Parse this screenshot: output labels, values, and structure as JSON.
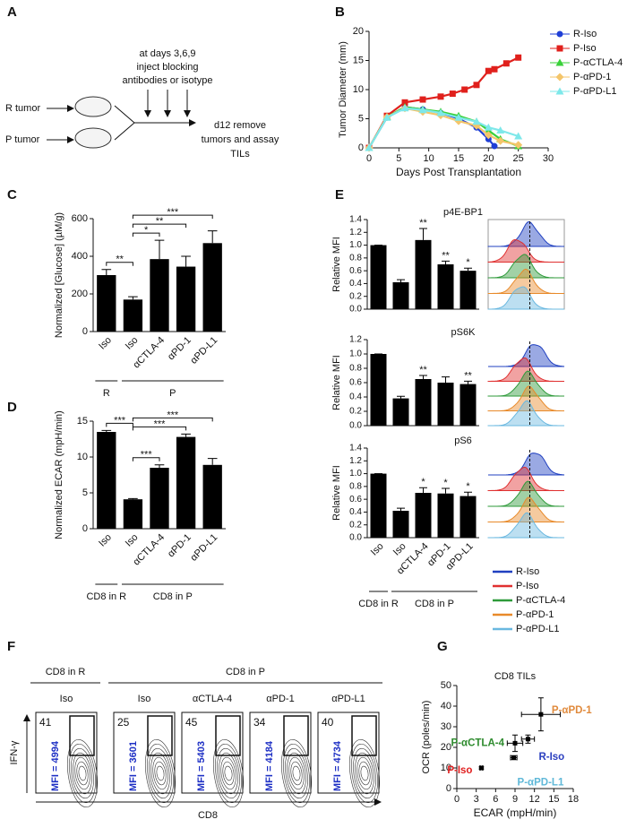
{
  "panel_labels": [
    "A",
    "B",
    "C",
    "D",
    "E",
    "F",
    "G"
  ],
  "panel_a": {
    "timing": [
      "at days 3,6,9",
      "inject blocking",
      "antibodies or isotype"
    ],
    "inputs": [
      "R tumor",
      "P tumor"
    ],
    "output": [
      "d12 remove",
      "tumors and assay",
      "TILs"
    ]
  },
  "chart_data": [
    {
      "type": "line",
      "xlabel": "Days Post Transplantation",
      "ylabel": "Tumor Diameter (mm)",
      "xlim": [
        0,
        30
      ],
      "xticks": [
        0,
        5,
        10,
        15,
        20,
        25,
        30
      ],
      "ylim": [
        0,
        20
      ],
      "yticks": [
        0,
        5,
        10,
        15,
        20
      ],
      "series": [
        {
          "name": "R-Iso",
          "color": "#1f3fd6",
          "marker": "circle",
          "x": [
            0,
            3,
            6,
            9,
            12,
            15,
            18,
            20,
            21
          ],
          "values": [
            0,
            5.2,
            7,
            6.6,
            6,
            5,
            3.5,
            1.5,
            0.3
          ]
        },
        {
          "name": "P-Iso",
          "color": "#e0201c",
          "marker": "square",
          "x": [
            0,
            3,
            6,
            9,
            12,
            14,
            16,
            18,
            20,
            21,
            23,
            25
          ],
          "values": [
            0,
            5.5,
            7.8,
            8.3,
            8.8,
            9.3,
            10,
            10.8,
            13.2,
            13.5,
            14.5,
            15.5
          ]
        },
        {
          "name": "P-αCTLA-4",
          "color": "#3ad13a",
          "marker": "triangle",
          "x": [
            0,
            3,
            6,
            9,
            12,
            15,
            18,
            20,
            22,
            25
          ],
          "values": [
            0,
            5.3,
            7,
            6.6,
            6.2,
            5.5,
            4.5,
            3,
            1.5,
            0.3
          ]
        },
        {
          "name": "P-αPD-1",
          "color": "#f4c56a",
          "marker": "diamond",
          "x": [
            0,
            3,
            6,
            9,
            12,
            15,
            18,
            20,
            22,
            25
          ],
          "values": [
            0,
            5.3,
            6.8,
            6.2,
            5.6,
            4.6,
            3.8,
            2.2,
            1.2,
            0.5
          ]
        },
        {
          "name": "P-αPD-L1",
          "color": "#7ee8ea",
          "marker": "triangle",
          "x": [
            0,
            3,
            6,
            9,
            12,
            15,
            18,
            20,
            22,
            25
          ],
          "values": [
            0,
            5.2,
            6.8,
            6.5,
            6,
            5.2,
            4.5,
            3.5,
            3,
            2
          ]
        }
      ]
    },
    {
      "type": "bar",
      "ylabel": "Normalized [Glucose] (µM/g)",
      "color": "#000000",
      "categories": [
        "Iso",
        "Iso",
        "αCTLA-4",
        "αPD-1",
        "αPD-L1"
      ],
      "values": [
        300,
        170,
        385,
        345,
        470
      ],
      "errors": [
        30,
        15,
        100,
        55,
        65
      ],
      "ylim": [
        0,
        600
      ],
      "yticks": [
        0,
        200,
        400,
        600
      ],
      "groups": [
        {
          "label": "R",
          "count": 1
        },
        {
          "label": "P",
          "count": 4
        }
      ],
      "comparisons": [
        {
          "pair": [
            0,
            1
          ],
          "label": "**"
        },
        {
          "pair": [
            1,
            2
          ],
          "label": "*"
        },
        {
          "pair": [
            1,
            3
          ],
          "label": "**"
        },
        {
          "pair": [
            1,
            4
          ],
          "label": "***"
        }
      ]
    },
    {
      "type": "bar",
      "ylabel": "Normalized ECAR (mpH/min)",
      "color": "#000000",
      "categories": [
        "Iso",
        "Iso",
        "αCTLA-4",
        "αPD-1",
        "αPD-L1"
      ],
      "values": [
        13.5,
        4.1,
        8.5,
        12.8,
        8.9
      ],
      "errors": [
        0.2,
        0.1,
        0.4,
        0.4,
        0.9
      ],
      "ylim": [
        0,
        15
      ],
      "yticks": [
        0,
        5,
        10,
        15
      ],
      "groups": [
        {
          "label": "CD8 in R",
          "count": 1
        },
        {
          "label": "CD8 in P",
          "count": 4
        }
      ],
      "comparisons": [
        {
          "pair": [
            0,
            1
          ],
          "label": "***"
        },
        {
          "pair": [
            1,
            2
          ],
          "label": "***"
        },
        {
          "pair": [
            1,
            3
          ],
          "label": "***"
        },
        {
          "pair": [
            1,
            4
          ],
          "label": "***"
        }
      ]
    },
    {
      "type": "bar",
      "title": "p4E-BP1",
      "ylabel": "Relative MFI",
      "color": "#000000",
      "values": [
        1.0,
        0.42,
        1.08,
        0.7,
        0.6
      ],
      "errors": [
        0,
        0.04,
        0.18,
        0.05,
        0.04
      ],
      "ylim": [
        0,
        1.4
      ],
      "yticks": [
        {
          "value": 0,
          "label": "0.0"
        },
        0.2,
        0.4,
        0.6,
        0.8,
        {
          "value": 1,
          "label": "1.0"
        },
        1.2,
        1.4
      ],
      "significance": [
        {
          "index": 2,
          "label": "**"
        },
        {
          "index": 3,
          "label": "**"
        },
        {
          "index": 4,
          "label": "*"
        }
      ]
    },
    {
      "type": "bar",
      "title": "pS6K",
      "ylabel": "Relative MFI",
      "color": "#000000",
      "values": [
        1.0,
        0.38,
        0.65,
        0.6,
        0.58
      ],
      "errors": [
        0,
        0.03,
        0.05,
        0.08,
        0.04
      ],
      "ylim": [
        0,
        1.2
      ],
      "yticks": [
        {
          "value": 0,
          "label": "0.0"
        },
        0.2,
        0.4,
        0.6,
        0.8,
        {
          "value": 1,
          "label": "1.0"
        },
        1.2
      ],
      "significance": [
        {
          "index": 2,
          "label": "**"
        },
        {
          "index": 4,
          "label": "**"
        }
      ]
    },
    {
      "type": "bar",
      "title": "pS6",
      "ylabel": "Relative MFI",
      "color": "#000000",
      "categories": [
        "Iso",
        "Iso",
        "αCTLA-4",
        "αPD-1",
        "αPD-L1"
      ],
      "values": [
        1.0,
        0.42,
        0.7,
        0.69,
        0.65
      ],
      "errors": [
        0,
        0.04,
        0.08,
        0.08,
        0.06
      ],
      "ylim": [
        0,
        1.4
      ],
      "yticks": [
        {
          "value": 0,
          "label": "0.0"
        },
        0.2,
        0.4,
        0.6,
        0.8,
        {
          "value": 1,
          "label": "1.0"
        },
        1.2,
        1.4
      ],
      "groups": [
        {
          "label": "CD8 in R",
          "count": 1
        },
        {
          "label": "CD8 in P",
          "count": 4
        }
      ],
      "significance": [
        {
          "index": 2,
          "label": "*"
        },
        {
          "index": 3,
          "label": "*"
        },
        {
          "index": 4,
          "label": "*"
        }
      ]
    },
    {
      "type": "scatter",
      "title": "CD8 TILs",
      "xlabel": "ECAR (mpH/min)",
      "ylabel": "OCR (poles/min)",
      "marker_color": "#000000",
      "xlim": [
        0,
        18
      ],
      "xticks": [
        0,
        3,
        6,
        9,
        12,
        15,
        18
      ],
      "ylim": [
        0,
        50
      ],
      "yticks": [
        0,
        10,
        20,
        30,
        40,
        50
      ],
      "series": [
        {
          "name": "R-Iso",
          "color": "#2b3fbf",
          "x": [
            11
          ],
          "values": [
            24
          ],
          "xerr": [
            1
          ],
          "yerr": [
            2
          ]
        },
        {
          "name": "P-Iso",
          "color": "#e02020",
          "x": [
            3.8
          ],
          "values": [
            10
          ],
          "xerr": [
            0.2
          ],
          "yerr": [
            0.5
          ]
        },
        {
          "name": "P-αCTLA-4",
          "color": "#2e8b2e",
          "x": [
            9
          ],
          "values": [
            22
          ],
          "xerr": [
            1.2
          ],
          "yerr": [
            4
          ]
        },
        {
          "name": "P-αPD-1",
          "color": "#e08a3c",
          "x": [
            13
          ],
          "values": [
            36
          ],
          "xerr": [
            3
          ],
          "yerr": [
            8
          ]
        },
        {
          "name": "P-αPD-L1",
          "color": "#5fb8d8",
          "x": [
            8.8
          ],
          "values": [
            15
          ],
          "xerr": [
            0.5
          ],
          "yerr": [
            1
          ]
        }
      ]
    }
  ],
  "panel_e_legend": [
    {
      "name": "R-Iso",
      "color": "#2040c0"
    },
    {
      "name": "P-Iso",
      "color": "#e03030"
    },
    {
      "name": "P-αCTLA-4",
      "color": "#2e9a3a"
    },
    {
      "name": "P-αPD-1",
      "color": "#e88a2a"
    },
    {
      "name": "P-αPD-L1",
      "color": "#6ab8e0"
    }
  ],
  "panel_f": {
    "groups": [
      {
        "label": "CD8 in R",
        "count": 1
      },
      {
        "label": "CD8 in P",
        "count": 4
      }
    ],
    "plots": [
      {
        "treatment": "Iso",
        "percent": 41,
        "mfi": "MFI = 4994"
      },
      {
        "treatment": "Iso",
        "percent": 25,
        "mfi": "MFI = 3601"
      },
      {
        "treatment": "αCTLA-4",
        "percent": 45,
        "mfi": "MFI = 5403"
      },
      {
        "treatment": "αPD-1",
        "percent": 34,
        "mfi": "MFI = 4184"
      },
      {
        "treatment": "αPD-L1",
        "percent": 40,
        "mfi": "MFI = 4734"
      }
    ],
    "y_axis": "IFN-γ",
    "x_axis": "CD8"
  }
}
